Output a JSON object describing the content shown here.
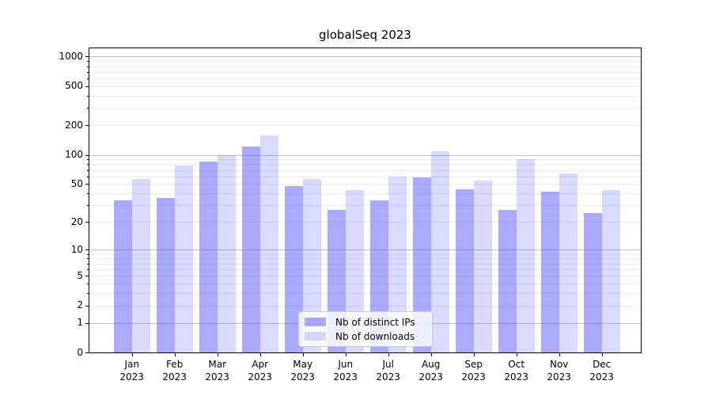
{
  "title": "globalSeq 2023",
  "chart_data": {
    "type": "bar",
    "title": "globalSeq 2023",
    "categories": [
      "Jan 2023",
      "Feb 2023",
      "Mar 2023",
      "Apr 2023",
      "May 2023",
      "Jun 2023",
      "Jul 2023",
      "Aug 2023",
      "Sep 2023",
      "Oct 2023",
      "Nov 2023",
      "Dec 2023"
    ],
    "series": [
      {
        "name": "Nb of distinct IPs",
        "color": "rgba(85,85,255,0.5)",
        "values": [
          34,
          36,
          85,
          122,
          48,
          27,
          34,
          59,
          44,
          27,
          42,
          25
        ]
      },
      {
        "name": "Nb of downloads",
        "color": "rgba(85,85,255,0.22)",
        "values": [
          56,
          77,
          100,
          159,
          56,
          43,
          60,
          109,
          54,
          90,
          64,
          43
        ]
      }
    ],
    "xlabel": "",
    "ylabel": "",
    "yscale": "log1p",
    "yticks": [
      0,
      1,
      2,
      5,
      10,
      20,
      50,
      100,
      200,
      500,
      1000
    ],
    "ylim": [
      0,
      1200
    ],
    "grid": true,
    "legend_position": "bottom-center",
    "colors": {
      "bar_dark": "rgba(85,85,255,0.5)",
      "bar_light": "rgba(85,85,255,0.22)",
      "grid_major": "#bdbdbd",
      "grid_minor": "#ececec",
      "axis": "#000000"
    }
  }
}
